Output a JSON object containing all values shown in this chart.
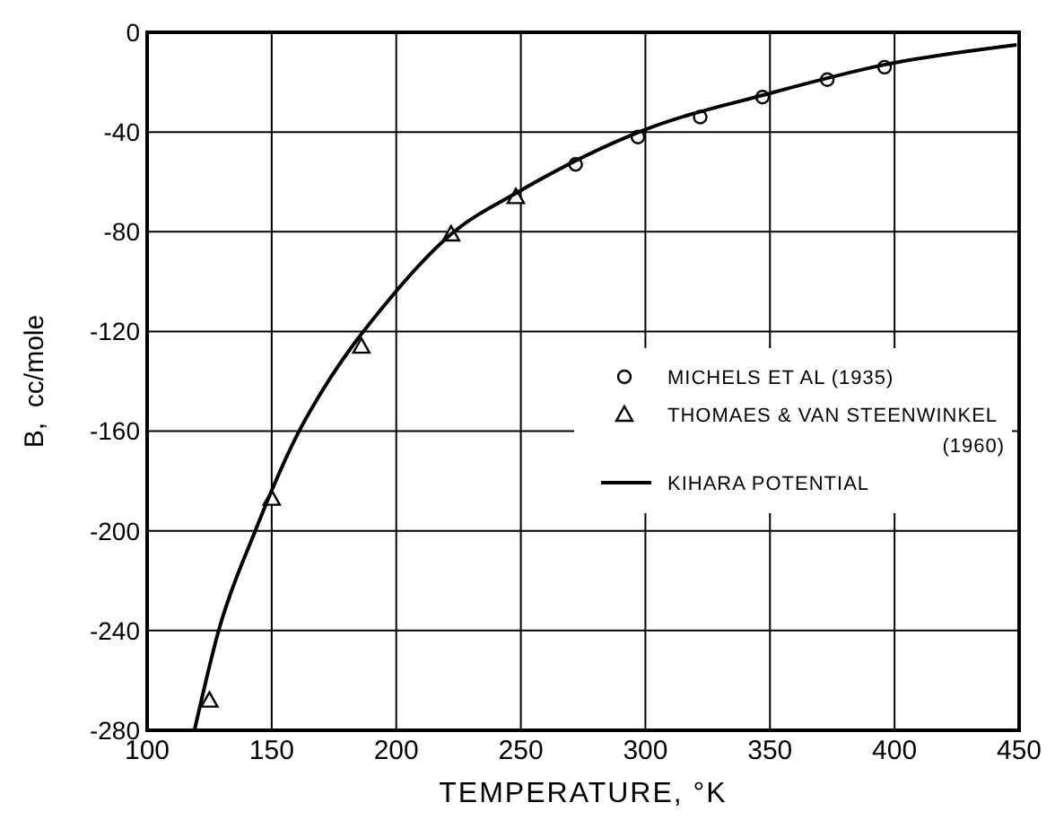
{
  "chart_data": {
    "type": "scatter",
    "xlabel": "TEMPERATURE, °K",
    "ylabel": "B,  cc/mole",
    "xlim": [
      100,
      450
    ],
    "xticks": [
      100,
      150,
      200,
      250,
      300,
      350,
      400,
      450
    ],
    "ylim": [
      -280,
      0
    ],
    "yticks": [
      -280,
      -240,
      -200,
      -160,
      -120,
      -80,
      -40,
      0
    ],
    "grid": true,
    "legend": "right",
    "series": [
      {
        "name": "MICHELS ET AL (1935)",
        "marker": "circle",
        "color": "#000000",
        "x": [
          272,
          297,
          322,
          347,
          373,
          396
        ],
        "values": [
          -53,
          -42,
          -34,
          -26,
          -19,
          -14
        ]
      },
      {
        "name": "THOMAES & VAN STEENWINKEL (1960)",
        "marker": "triangle",
        "color": "#000000",
        "x": [
          125,
          150,
          186,
          222,
          248
        ],
        "values": [
          -268,
          -187,
          -126,
          -81,
          -66
        ]
      },
      {
        "name": "KIHARA POTENTIAL",
        "type": "line",
        "marker": "none",
        "line_style": "solid",
        "color": "#000000",
        "x": [
          119,
          129,
          143,
          161,
          166,
          199,
          222,
          249,
          300,
          348,
          396,
          449
        ],
        "values": [
          -280,
          -239,
          -201,
          -160,
          -151,
          -105,
          -81,
          -64,
          -39,
          -25,
          -13,
          -5
        ]
      }
    ]
  }
}
